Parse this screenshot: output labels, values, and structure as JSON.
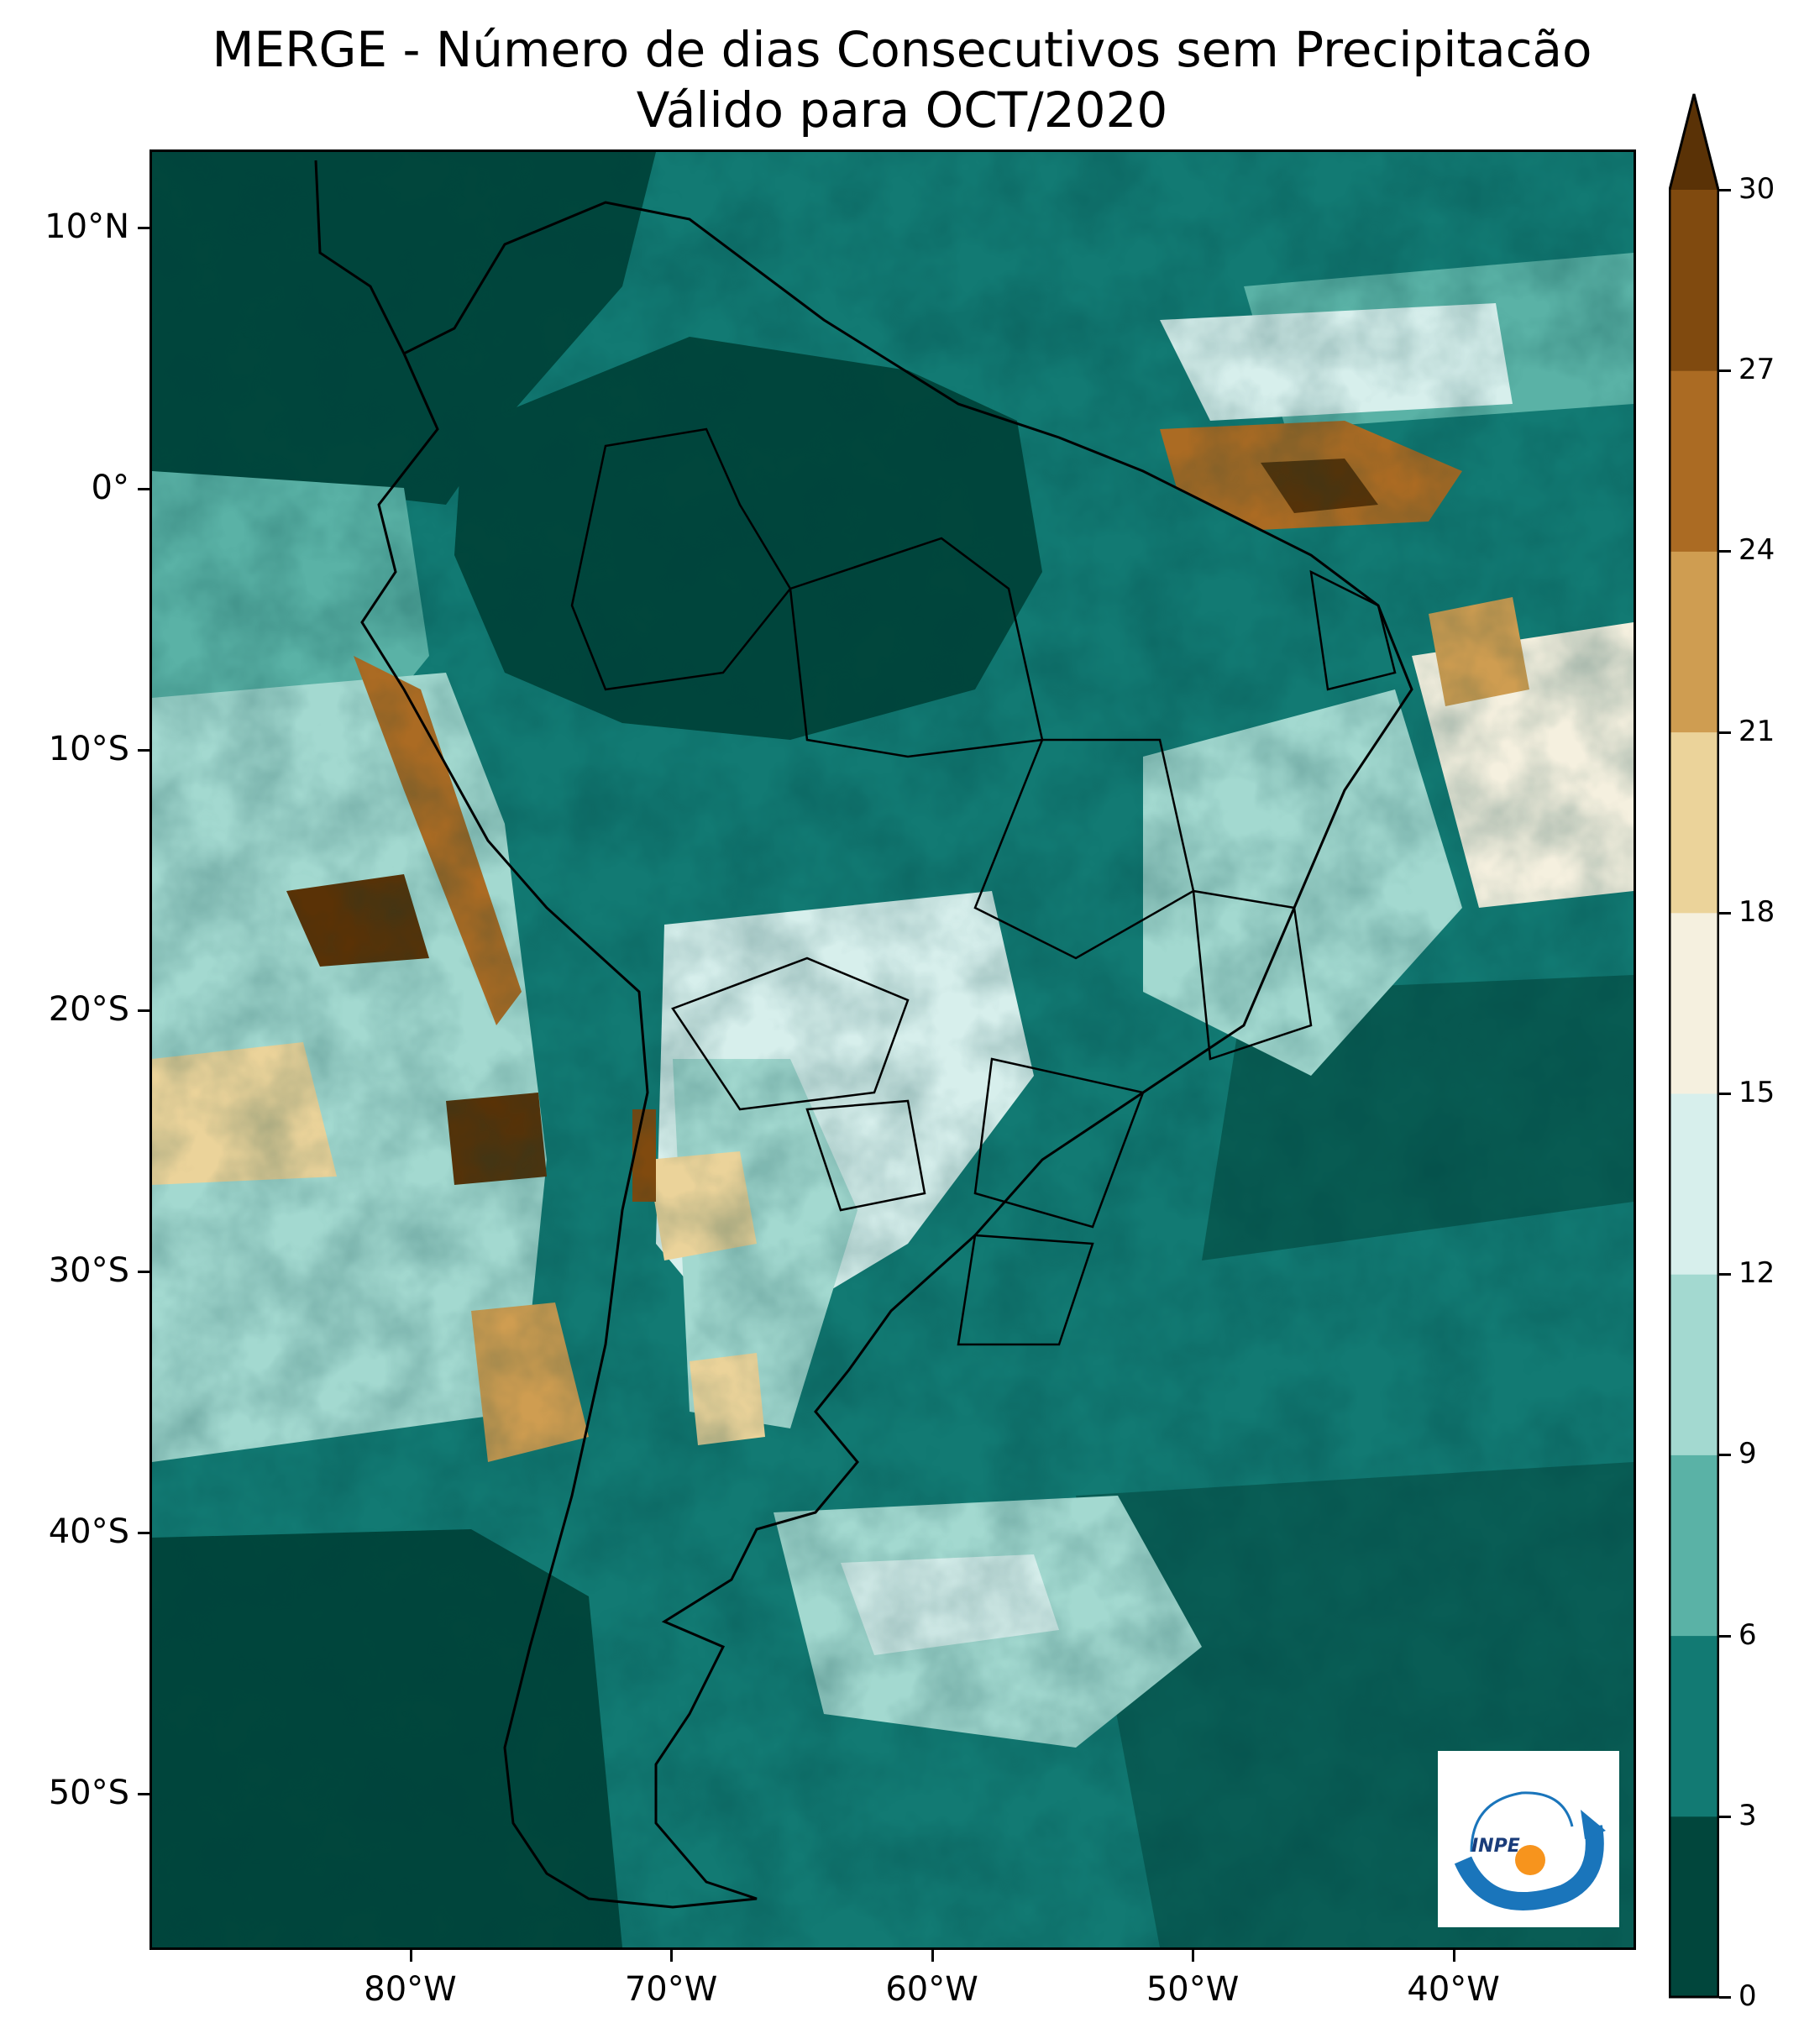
{
  "title": {
    "line1": "MERGE - Número de dias Consecutivos sem Precipitacão",
    "line2": "Válido para OCT/2020"
  },
  "map": {
    "type": "filled-contour-map",
    "region": "South America",
    "lat_range": [
      -56,
      13
    ],
    "lon_range": [
      -90,
      -33
    ],
    "lat_ticks": [
      {
        "value": 10,
        "label": "10°N"
      },
      {
        "value": 0,
        "label": "0°"
      },
      {
        "value": -10,
        "label": "10°S"
      },
      {
        "value": -20,
        "label": "20°S"
      },
      {
        "value": -30,
        "label": "30°S"
      },
      {
        "value": -40,
        "label": "40°S"
      },
      {
        "value": -50,
        "label": "50°S"
      }
    ],
    "lon_ticks": [
      {
        "value": -80,
        "label": "80°W"
      },
      {
        "value": -70,
        "label": "70°W"
      },
      {
        "value": -60,
        "label": "60°W"
      },
      {
        "value": -50,
        "label": "50°W"
      },
      {
        "value": -40,
        "label": "40°W"
      }
    ]
  },
  "colorbar": {
    "extend": "max",
    "levels": [
      0,
      3,
      6,
      9,
      12,
      15,
      18,
      21,
      24,
      27,
      30
    ],
    "labels": [
      "0",
      "3",
      "6",
      "9",
      "12",
      "15",
      "18",
      "21",
      "24",
      "27",
      "30"
    ],
    "colors": [
      "#01463c",
      "#127a73",
      "#5ab2a6",
      "#a3d9d0",
      "#d7efec",
      "#f5f0df",
      "#ebd39a",
      "#cf9d51",
      "#ab6b23",
      "#804a0f"
    ],
    "extend_color": "#5a3206"
  },
  "logo": {
    "text": "INPE"
  }
}
